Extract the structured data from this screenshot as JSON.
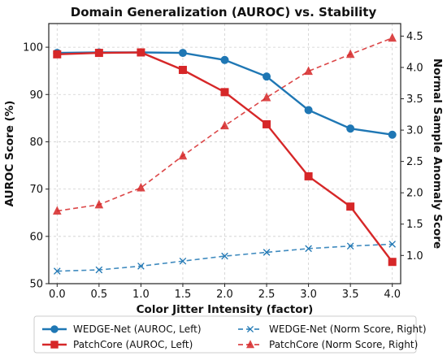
{
  "chart_data": {
    "type": "line",
    "title": "Domain Generalization (AUROC) vs. Stability",
    "xlabel": "Color Jitter Intensity (factor)",
    "ylabel_left": "AUROC Score (%)",
    "ylabel_right": "Normal Sample Anomaly Score",
    "x": [
      0.0,
      0.5,
      1.0,
      1.5,
      2.0,
      2.5,
      3.0,
      3.5,
      4.0
    ],
    "x_tick_labels": [
      "0.0",
      "0.5",
      "1.0",
      "1.5",
      "2.0",
      "2.5",
      "3.0",
      "3.5",
      "4.0"
    ],
    "xlim": [
      -0.1,
      4.1
    ],
    "ylim_left": [
      50,
      105
    ],
    "ylim_right": [
      0.55,
      4.7
    ],
    "y_ticks_left": [
      "50",
      "60",
      "70",
      "80",
      "90",
      "100"
    ],
    "y_ticks_right": [
      "1.0",
      "1.5",
      "2.0",
      "2.5",
      "3.0",
      "3.5",
      "4.0",
      "4.5"
    ],
    "grid": true,
    "legend_location": "bottom",
    "series": [
      {
        "name": "WEDGE-Net (AUROC, Left)",
        "axis": "left",
        "color": "#1f77b4",
        "style": "solid",
        "marker": "circle",
        "values": [
          98.8,
          98.9,
          98.9,
          98.8,
          97.3,
          93.8,
          86.7,
          82.8,
          81.5
        ]
      },
      {
        "name": "PatchCore (AUROC, Left)",
        "axis": "left",
        "color": "#d62728",
        "style": "solid",
        "marker": "square",
        "values": [
          98.5,
          98.8,
          98.9,
          95.2,
          90.5,
          83.7,
          72.7,
          66.3,
          54.6
        ]
      },
      {
        "name": "WEDGE-Net (Norm Score, Right)",
        "axis": "right",
        "color": "#1f77b4",
        "style": "dashed",
        "marker": "x",
        "values": [
          0.75,
          0.77,
          0.83,
          0.91,
          0.99,
          1.05,
          1.11,
          1.15,
          1.18
        ]
      },
      {
        "name": "PatchCore (Norm Score, Right)",
        "axis": "right",
        "color": "#d62728",
        "style": "dashed",
        "marker": "triangle",
        "values": [
          1.71,
          1.81,
          2.08,
          2.59,
          3.07,
          3.52,
          3.94,
          4.21,
          4.47
        ]
      }
    ]
  }
}
